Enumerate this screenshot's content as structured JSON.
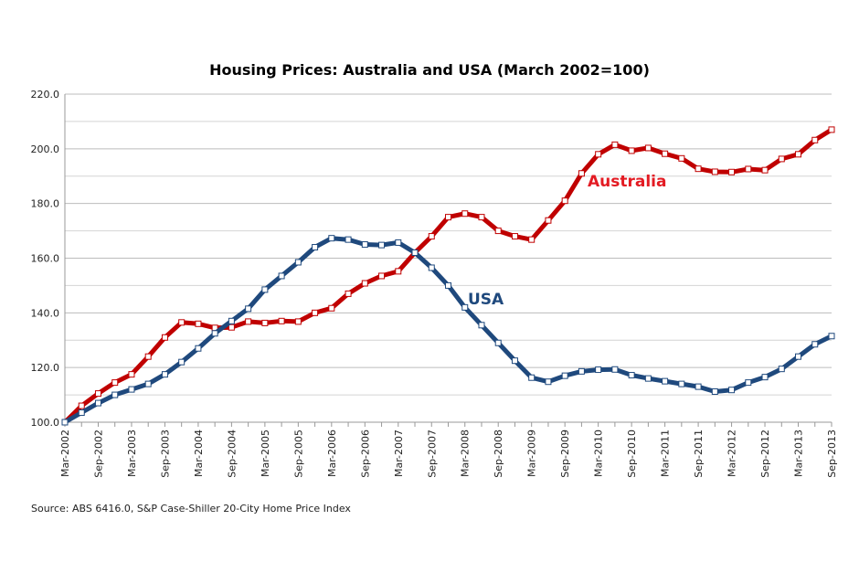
{
  "chart_data": {
    "type": "line",
    "title": "Housing Prices: Australia and USA (March 2002=100)",
    "xlabel": "",
    "ylabel": "",
    "ylim": [
      100,
      220
    ],
    "yticks": [
      "100.0",
      "120.0",
      "140.0",
      "160.0",
      "180.0",
      "200.0",
      "220.0"
    ],
    "grid": true,
    "x": [
      "Mar-2002",
      "Jun-2002",
      "Sep-2002",
      "Dec-2002",
      "Mar-2003",
      "Jun-2003",
      "Sep-2003",
      "Dec-2003",
      "Mar-2004",
      "Jun-2004",
      "Sep-2004",
      "Dec-2004",
      "Mar-2005",
      "Jun-2005",
      "Sep-2005",
      "Dec-2005",
      "Mar-2006",
      "Jun-2006",
      "Sep-2006",
      "Dec-2006",
      "Mar-2007",
      "Jun-2007",
      "Sep-2007",
      "Dec-2007",
      "Mar-2008",
      "Jun-2008",
      "Sep-2008",
      "Dec-2008",
      "Mar-2009",
      "Jun-2009",
      "Sep-2009",
      "Dec-2009",
      "Mar-2010",
      "Jun-2010",
      "Sep-2010",
      "Dec-2010",
      "Mar-2011",
      "Jun-2011",
      "Sep-2011",
      "Dec-2011",
      "Mar-2012",
      "Jun-2012",
      "Sep-2012",
      "Dec-2012",
      "Mar-2013",
      "Jun-2013",
      "Sep-2013"
    ],
    "xtick_labels": [
      "Mar-2002",
      "Sep-2002",
      "Mar-2003",
      "Sep-2003",
      "Mar-2004",
      "Sep-2004",
      "Mar-2005",
      "Sep-2005",
      "Mar-2006",
      "Sep-2006",
      "Mar-2007",
      "Sep-2007",
      "Mar-2008",
      "Sep-2008",
      "Mar-2009",
      "Sep-2009",
      "Mar-2010",
      "Sep-2010",
      "Mar-2011",
      "Sep-2011",
      "Mar-2012",
      "Sep-2012",
      "Mar-2013",
      "Sep-2013"
    ],
    "series": [
      {
        "name": "Australia",
        "color": "#c00000",
        "label_color": "#e31b23",
        "values": [
          100,
          106,
          110.5,
          114.5,
          117.5,
          124,
          131,
          136.5,
          136,
          134.5,
          134.7,
          136.8,
          136.3,
          137,
          136.8,
          140,
          141.7,
          147,
          150.8,
          153.5,
          155.2,
          162,
          168,
          175,
          176.3,
          175,
          170,
          168,
          166.8,
          173.8,
          181,
          191,
          198,
          201.5,
          199.3,
          200.3,
          198.2,
          196.5,
          192.7,
          191.6,
          191.5,
          192.6,
          192.2,
          196.3,
          198,
          203.2,
          207
        ]
      },
      {
        "name": "USA",
        "color": "#1f497d",
        "label_color": "#1f497d",
        "values": [
          100,
          103.5,
          107,
          110,
          112,
          114,
          117.5,
          122,
          127,
          132.5,
          137,
          141.5,
          148.5,
          153.5,
          158.5,
          164,
          167.3,
          166.8,
          165,
          164.8,
          165.7,
          162,
          156.5,
          150,
          142,
          135.5,
          129,
          122.5,
          116.3,
          114.8,
          117,
          118.6,
          119.2,
          119.3,
          117.2,
          116,
          115,
          114,
          113,
          111.2,
          111.8,
          114.5,
          116.5,
          119.5,
          124,
          128.5,
          131.5
        ]
      }
    ],
    "annotations": [
      "Australia",
      "USA"
    ]
  },
  "source": "Source: ABS 6416.0, S&P Case-Shiller 20-City Home Price Index"
}
